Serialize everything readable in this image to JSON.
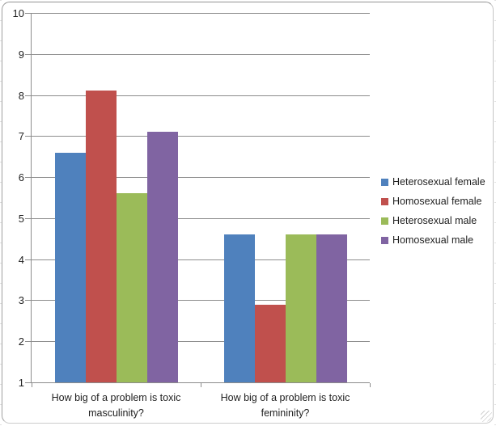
{
  "chart_data": {
    "type": "bar",
    "title": "",
    "categories": [
      "How big of a problem is toxic masculinity?",
      "How big of a problem is toxic femininity?"
    ],
    "series": [
      {
        "name": "Heterosexual female",
        "color": "#4F81BD",
        "values": [
          6.6,
          4.6
        ]
      },
      {
        "name": "Homosexual female",
        "color": "#C0504D",
        "values": [
          8.1,
          2.9
        ]
      },
      {
        "name": "Heterosexual male",
        "color": "#9BBB59",
        "values": [
          5.6,
          4.6
        ]
      },
      {
        "name": "Homosexual male",
        "color": "#8064A2",
        "values": [
          7.1,
          4.6
        ]
      }
    ],
    "ylim": [
      1,
      10
    ],
    "yticks": [
      1,
      2,
      3,
      4,
      5,
      6,
      7,
      8,
      9,
      10
    ],
    "xlabel": "",
    "ylabel": "",
    "grid": true,
    "legend_position": "right"
  },
  "style": {
    "gridline_color": "#8C8C8C",
    "axis_color": "#8C8C8C",
    "text_color": "#1F1F1F",
    "background": "#FFFFFF",
    "frame_border_color": "#A6A6A6"
  }
}
